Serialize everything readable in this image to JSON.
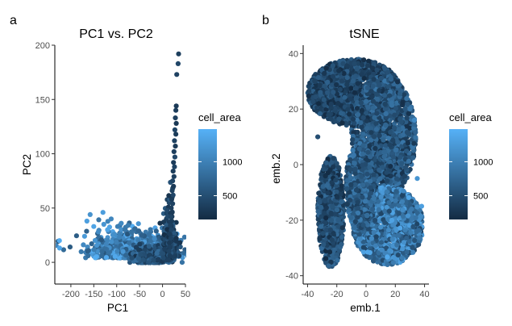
{
  "figure": {
    "panels": [
      {
        "label": "a",
        "title": "PC1 vs. PC2",
        "xlabel": "PC1",
        "ylabel": "PC2"
      },
      {
        "label": "b",
        "title": "tSNE",
        "xlabel": "emb.1",
        "ylabel": "emb.2"
      }
    ]
  },
  "chart_data": [
    {
      "type": "scatter",
      "title": "PC1 vs. PC2",
      "xlabel": "PC1",
      "ylabel": "PC2",
      "xlim": [
        -235,
        50
      ],
      "ylim": [
        -20,
        200
      ],
      "xticks": [
        -200,
        -150,
        -100,
        -50,
        0,
        50
      ],
      "yticks": [
        0,
        50,
        100,
        150,
        200
      ],
      "color_by": "cell_area",
      "legend": {
        "title": "cell_area",
        "ticks": [
          500,
          1000
        ],
        "range": [
          150,
          1480
        ],
        "placement": "right"
      },
      "colors": {
        "low": "#132b43",
        "high": "#56b1f7"
      },
      "grid": false,
      "points": [
        {
          "x": 35,
          "y": 192,
          "c": 350
        },
        {
          "x": 34,
          "y": 183,
          "c": 420
        },
        {
          "x": 31,
          "y": 173,
          "c": 380
        },
        {
          "x": 30,
          "y": 144,
          "c": 300
        },
        {
          "x": 29,
          "y": 140,
          "c": 330
        },
        {
          "x": 28,
          "y": 133,
          "c": 360
        },
        {
          "x": 30,
          "y": 128,
          "c": 280
        },
        {
          "x": 27,
          "y": 122,
          "c": 400
        },
        {
          "x": 29,
          "y": 118,
          "c": 320
        },
        {
          "x": 26,
          "y": 112,
          "c": 370
        },
        {
          "x": 28,
          "y": 107,
          "c": 300
        },
        {
          "x": 25,
          "y": 102,
          "c": 340
        },
        {
          "x": 27,
          "y": 97,
          "c": 420
        },
        {
          "x": 24,
          "y": 92,
          "c": 310
        },
        {
          "x": 26,
          "y": 88,
          "c": 380
        },
        {
          "x": 23,
          "y": 84,
          "c": 330
        },
        {
          "x": 25,
          "y": 79,
          "c": 350
        },
        {
          "x": 22,
          "y": 75,
          "c": 400
        },
        {
          "x": 24,
          "y": 70,
          "c": 290
        },
        {
          "x": 21,
          "y": 66,
          "c": 360
        },
        {
          "x": 23,
          "y": 62,
          "c": 420
        },
        {
          "x": 20,
          "y": 58,
          "c": 310
        },
        {
          "x": 22,
          "y": 54,
          "c": 380
        },
        {
          "x": 19,
          "y": 50,
          "c": 340
        },
        {
          "x": 21,
          "y": 46,
          "c": 300
        },
        {
          "x": 18,
          "y": 42,
          "c": 390
        },
        {
          "x": 20,
          "y": 38,
          "c": 330
        },
        {
          "x": 17,
          "y": 34,
          "c": 360
        },
        {
          "x": 19,
          "y": 30,
          "c": 410
        },
        {
          "x": 16,
          "y": 26,
          "c": 320
        },
        {
          "x": 18,
          "y": 22,
          "c": 370
        },
        {
          "x": 15,
          "y": 18,
          "c": 300
        },
        {
          "x": 17,
          "y": 14,
          "c": 350
        },
        {
          "x": 14,
          "y": 10,
          "c": 390
        },
        {
          "x": 16,
          "y": 6,
          "c": 330
        },
        {
          "x": 13,
          "y": 2,
          "c": 360
        },
        {
          "x": -225,
          "y": 20,
          "c": 1420
        },
        {
          "x": -170,
          "y": 24,
          "c": 1250
        },
        {
          "x": -165,
          "y": 38,
          "c": 1300
        },
        {
          "x": -158,
          "y": 44,
          "c": 1180
        },
        {
          "x": -150,
          "y": 33,
          "c": 1350
        },
        {
          "x": -140,
          "y": 28,
          "c": 1100
        },
        {
          "x": -130,
          "y": 46,
          "c": 1280
        },
        {
          "x": -128,
          "y": 35,
          "c": 1200
        },
        {
          "x": -120,
          "y": 30,
          "c": 1350
        },
        {
          "x": -112,
          "y": 40,
          "c": 1050
        },
        {
          "x": -105,
          "y": 26,
          "c": 1150
        },
        {
          "x": -98,
          "y": 33,
          "c": 980
        },
        {
          "x": -90,
          "y": 36,
          "c": 1080
        },
        {
          "x": -82,
          "y": 30,
          "c": 900
        },
        {
          "x": -75,
          "y": 34,
          "c": 950
        },
        {
          "x": -68,
          "y": 28,
          "c": 850
        },
        {
          "x": -60,
          "y": 31,
          "c": 780
        },
        {
          "x": -52,
          "y": 29,
          "c": 720
        },
        {
          "x": -45,
          "y": 25,
          "c": 680
        }
      ],
      "clusters": [
        {
          "cx": -65,
          "cy": 8,
          "sx": 48,
          "sy": 10,
          "n": 900,
          "cmin": 550,
          "cmax": 1450
        },
        {
          "cx": -20,
          "cy": 2,
          "sx": 20,
          "sy": 6,
          "n": 500,
          "cmin": 200,
          "cmax": 900
        },
        {
          "cx": 15,
          "cy": 10,
          "sx": 6,
          "sy": 20,
          "n": 450,
          "cmin": 180,
          "cmax": 650
        }
      ]
    },
    {
      "type": "scatter",
      "title": "tSNE",
      "xlabel": "emb.1",
      "ylabel": "emb.2",
      "xlim": [
        -43,
        43
      ],
      "ylim": [
        -43,
        43
      ],
      "xticks": [
        -40,
        -20,
        0,
        20,
        40
      ],
      "yticks": [
        -40,
        -20,
        0,
        20,
        40
      ],
      "color_by": "cell_area",
      "legend": {
        "title": "cell_area",
        "ticks": [
          500,
          1000
        ],
        "range": [
          150,
          1480
        ],
        "placement": "right"
      },
      "colors": {
        "low": "#132b43",
        "high": "#56b1f7"
      },
      "grid": false,
      "clusters": [
        {
          "cx": -8,
          "cy": 26,
          "rx": 32,
          "ry": 12,
          "n": 1600,
          "cmin": 150,
          "cmax": 700
        },
        {
          "cx": 12,
          "cy": 10,
          "rx": 22,
          "ry": 22,
          "n": 1500,
          "cmin": 200,
          "cmax": 900
        },
        {
          "cx": -24,
          "cy": -17,
          "rx": 9,
          "ry": 20,
          "n": 900,
          "cmin": 150,
          "cmax": 800
        },
        {
          "cx": 15,
          "cy": -22,
          "rx": 24,
          "ry": 14,
          "n": 1600,
          "cmin": 400,
          "cmax": 1400
        },
        {
          "cx": -4,
          "cy": -8,
          "rx": 10,
          "ry": 16,
          "n": 600,
          "cmin": 300,
          "cmax": 1000
        }
      ],
      "points": [
        {
          "x": 30,
          "y": 20,
          "c": 900
        },
        {
          "x": 33,
          "y": 16,
          "c": 1100
        },
        {
          "x": 35,
          "y": -5,
          "c": 1200
        },
        {
          "x": 38,
          "y": -15,
          "c": 1300
        },
        {
          "x": -33,
          "y": 10,
          "c": 500
        }
      ]
    }
  ]
}
